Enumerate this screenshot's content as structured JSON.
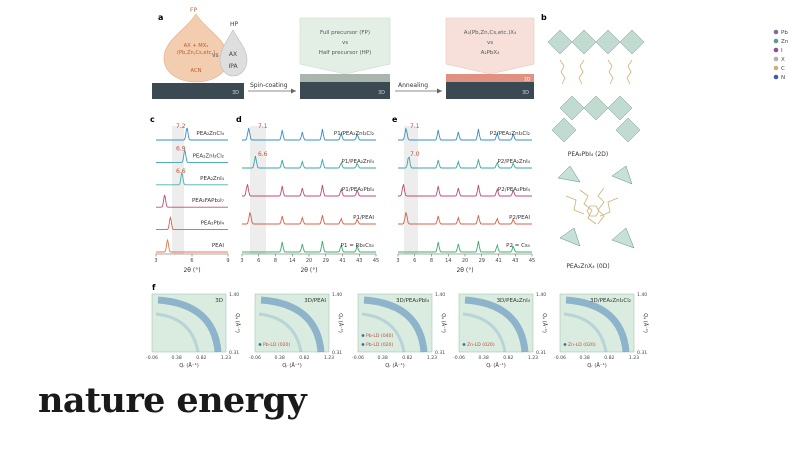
{
  "panels": {
    "a": {
      "letter": "a",
      "fp_drop": {
        "label": "FP",
        "lines": [
          "AX + MX₂",
          "(Pb,Zn,Cs,etc.)",
          "ACN"
        ]
      },
      "vs": "vs",
      "hp_drop": {
        "label": "HP",
        "lines": [
          "AX",
          "IPA"
        ]
      },
      "spin_coating": "Spin-coating",
      "annealing": "Annealing",
      "box1": [
        "Full precursor (FP)",
        "vs",
        "Half precursor (HP)"
      ],
      "box2": [
        "A₃(Pb,Zn,Cs,etc.)X₄",
        "vs",
        "A₂PbX₄"
      ],
      "film_label": "3D",
      "top_layer_label": "2D",
      "colors": {
        "drop_fp": "#f2c8a8",
        "drop_hp": "#dcdcdc",
        "film": "#3c4a55",
        "box1": "#e4efe6",
        "box2": "#f6ded8",
        "top_layer": "#e0907e"
      }
    },
    "b": {
      "letter": "b",
      "legend": [
        "Pb",
        "Zn",
        "I",
        "X",
        "C",
        "N"
      ],
      "legend_colors": [
        "#7a6f9b",
        "#5a9e8a",
        "#8a4f8f",
        "#b0b0b0",
        "#c9b27a",
        "#3d5fa8"
      ],
      "caption_top": "PEA₂PbI₄ (2D)",
      "caption_bottom": "PEA₂ZnX₄ (0D)"
    },
    "c": {
      "letter": "c",
      "xlabel": "2θ (°)",
      "xticks": [
        "3",
        "6",
        "9"
      ],
      "traces": [
        {
          "label": "PEA₂ZnCl₄",
          "peak": "7.2",
          "color": "#3a8fc6"
        },
        {
          "label": "PEA₂ZnI₂Cl₂",
          "peak": "6.9",
          "color": "#3aa0b8"
        },
        {
          "label": "PEA₂ZnI₄",
          "peak": "6.6",
          "color": "#4ab0b0"
        },
        {
          "label": "PEA₂FAPb₂I₇",
          "peak": "",
          "color": "#c04a7a"
        },
        {
          "label": "PEA₂PbI₄",
          "peak": "",
          "color": "#d8604a"
        },
        {
          "label": "PEAI",
          "peak": "",
          "color": "#e07850"
        }
      ]
    },
    "d": {
      "letter": "d",
      "xlabel": "2θ (°)",
      "xticks": [
        "3",
        "6",
        "8",
        "14",
        "20",
        "29",
        "41",
        "43",
        "45"
      ],
      "traces": [
        {
          "label": "P1/PEA₂ZnI₂Cl₂",
          "peak": "7.1",
          "color": "#3a8fc6"
        },
        {
          "label": "P1/PEA₂ZnI₄",
          "peak": "6.6",
          "color": "#3aa6a6"
        },
        {
          "label": "P1/PEA₂PbI₄",
          "peak": "",
          "color": "#c04a7a"
        },
        {
          "label": "P1/PEAI",
          "peak": "",
          "color": "#d8604a"
        },
        {
          "label": "P1 = Rb₀Cs₀",
          "peak": "",
          "color": "#3fae6e"
        }
      ]
    },
    "e": {
      "letter": "e",
      "xlabel": "2θ (°)",
      "xticks": [
        "3",
        "6",
        "8",
        "14",
        "20",
        "29",
        "41",
        "43",
        "45"
      ],
      "traces": [
        {
          "label": "P2/PEA₂ZnI₂Cl₂",
          "peak": "7.1",
          "color": "#3a8fc6"
        },
        {
          "label": "P2/PEA₂ZnI₄",
          "peak": "7.0",
          "color": "#3aa6a6"
        },
        {
          "label": "P2/PEA₂PbI₄",
          "peak": "",
          "color": "#c04a7a"
        },
        {
          "label": "P2/PEAI",
          "peak": "",
          "color": "#d8604a"
        },
        {
          "label": "P2 = Cs₀",
          "peak": "",
          "color": "#3fae6e"
        }
      ]
    },
    "f": {
      "letter": "f",
      "xticks": [
        "-0.06",
        "0.38",
        "0.82",
        "1.23"
      ],
      "yticks_top": "1.40",
      "yticks_bottom": "0.31",
      "xlabel": "Qᵣ (Å⁻¹)",
      "ylabel": "Qᵩ (Å⁻¹)",
      "maps": [
        {
          "title": "3D",
          "annotations": []
        },
        {
          "title": "3D/PEAI",
          "annotations": [
            "Pb-LD (020)"
          ]
        },
        {
          "title": "3D/PEA₂PbI₄",
          "annotations": [
            "Pb-LD (040)",
            "Pb-LD (020)"
          ]
        },
        {
          "title": "3D/PEA₂ZnI₄",
          "annotations": [
            "Zn-LD (020)"
          ]
        },
        {
          "title": "3D/PEA₂ZnI₂Cl₂",
          "annotations": [
            "Zn-LD (020)"
          ]
        }
      ]
    }
  },
  "journal": {
    "name": "nature energy"
  }
}
